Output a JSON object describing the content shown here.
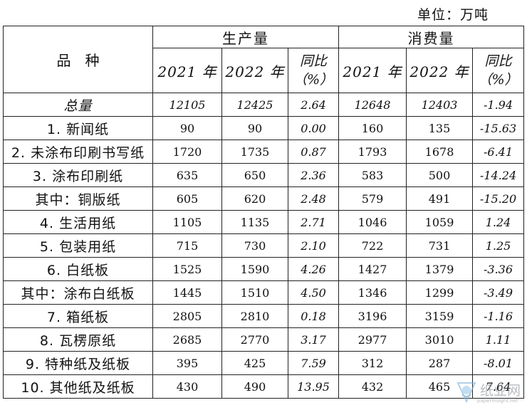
{
  "unit_label": "单位：万吨",
  "header": {
    "variety": "品　种",
    "production": "生产量",
    "consumption": "消费量",
    "year_2021": "2021 年",
    "year_2022": "2022 年",
    "yoy_line1": "同比",
    "yoy_line2": "（%）"
  },
  "rows": [
    {
      "name": "总量",
      "p2021": "12105",
      "p2022": "12425",
      "p_yoy": "2.64",
      "c2021": "12648",
      "c2022": "12403",
      "c_yoy": "-1.94"
    },
    {
      "name": "1. 新闻纸",
      "p2021": "90",
      "p2022": "90",
      "p_yoy": "0.00",
      "c2021": "160",
      "c2022": "135",
      "c_yoy": "-15.63"
    },
    {
      "name": "2. 未涂布印刷书写纸",
      "p2021": "1720",
      "p2022": "1735",
      "p_yoy": "0.87",
      "c2021": "1793",
      "c2022": "1678",
      "c_yoy": "-6.41"
    },
    {
      "name": "3. 涂布印刷纸",
      "p2021": "635",
      "p2022": "650",
      "p_yoy": "2.36",
      "c2021": "583",
      "c2022": "500",
      "c_yoy": "-14.24"
    },
    {
      "name": "其中：铜版纸",
      "p2021": "605",
      "p2022": "620",
      "p_yoy": "2.48",
      "c2021": "579",
      "c2022": "491",
      "c_yoy": "-15.20"
    },
    {
      "name": "4. 生活用纸",
      "p2021": "1105",
      "p2022": "1135",
      "p_yoy": "2.71",
      "c2021": "1046",
      "c2022": "1059",
      "c_yoy": "1.24"
    },
    {
      "name": "5. 包装用纸",
      "p2021": "715",
      "p2022": "730",
      "p_yoy": "2.10",
      "c2021": "722",
      "c2022": "731",
      "c_yoy": "1.25"
    },
    {
      "name": "6. 白纸板",
      "p2021": "1525",
      "p2022": "1590",
      "p_yoy": "4.26",
      "c2021": "1427",
      "c2022": "1379",
      "c_yoy": "-3.36"
    },
    {
      "name": "其中：涂布白纸板",
      "p2021": "1445",
      "p2022": "1510",
      "p_yoy": "4.50",
      "c2021": "1346",
      "c2022": "1299",
      "c_yoy": "-3.49"
    },
    {
      "name": "7. 箱纸板",
      "p2021": "2805",
      "p2022": "2810",
      "p_yoy": "0.18",
      "c2021": "3196",
      "c2022": "3159",
      "c_yoy": "-1.16"
    },
    {
      "name": "8. 瓦楞原纸",
      "p2021": "2685",
      "p2022": "2770",
      "p_yoy": "3.17",
      "c2021": "2977",
      "c2022": "3010",
      "c_yoy": "1.11"
    },
    {
      "name": "9. 特种纸及纸板",
      "p2021": "395",
      "p2022": "425",
      "p_yoy": "7.59",
      "c2021": "312",
      "c2022": "287",
      "c_yoy": "-8.01"
    },
    {
      "name": "10. 其他纸及纸板",
      "p2021": "430",
      "p2022": "490",
      "p_yoy": "13.95",
      "c2021": "432",
      "c2022": "465",
      "c_yoy": "7.64"
    }
  ],
  "watermark": {
    "icon": "paper-network-logo-icon",
    "text": "纸业网",
    "url": "paperinsight.net"
  }
}
